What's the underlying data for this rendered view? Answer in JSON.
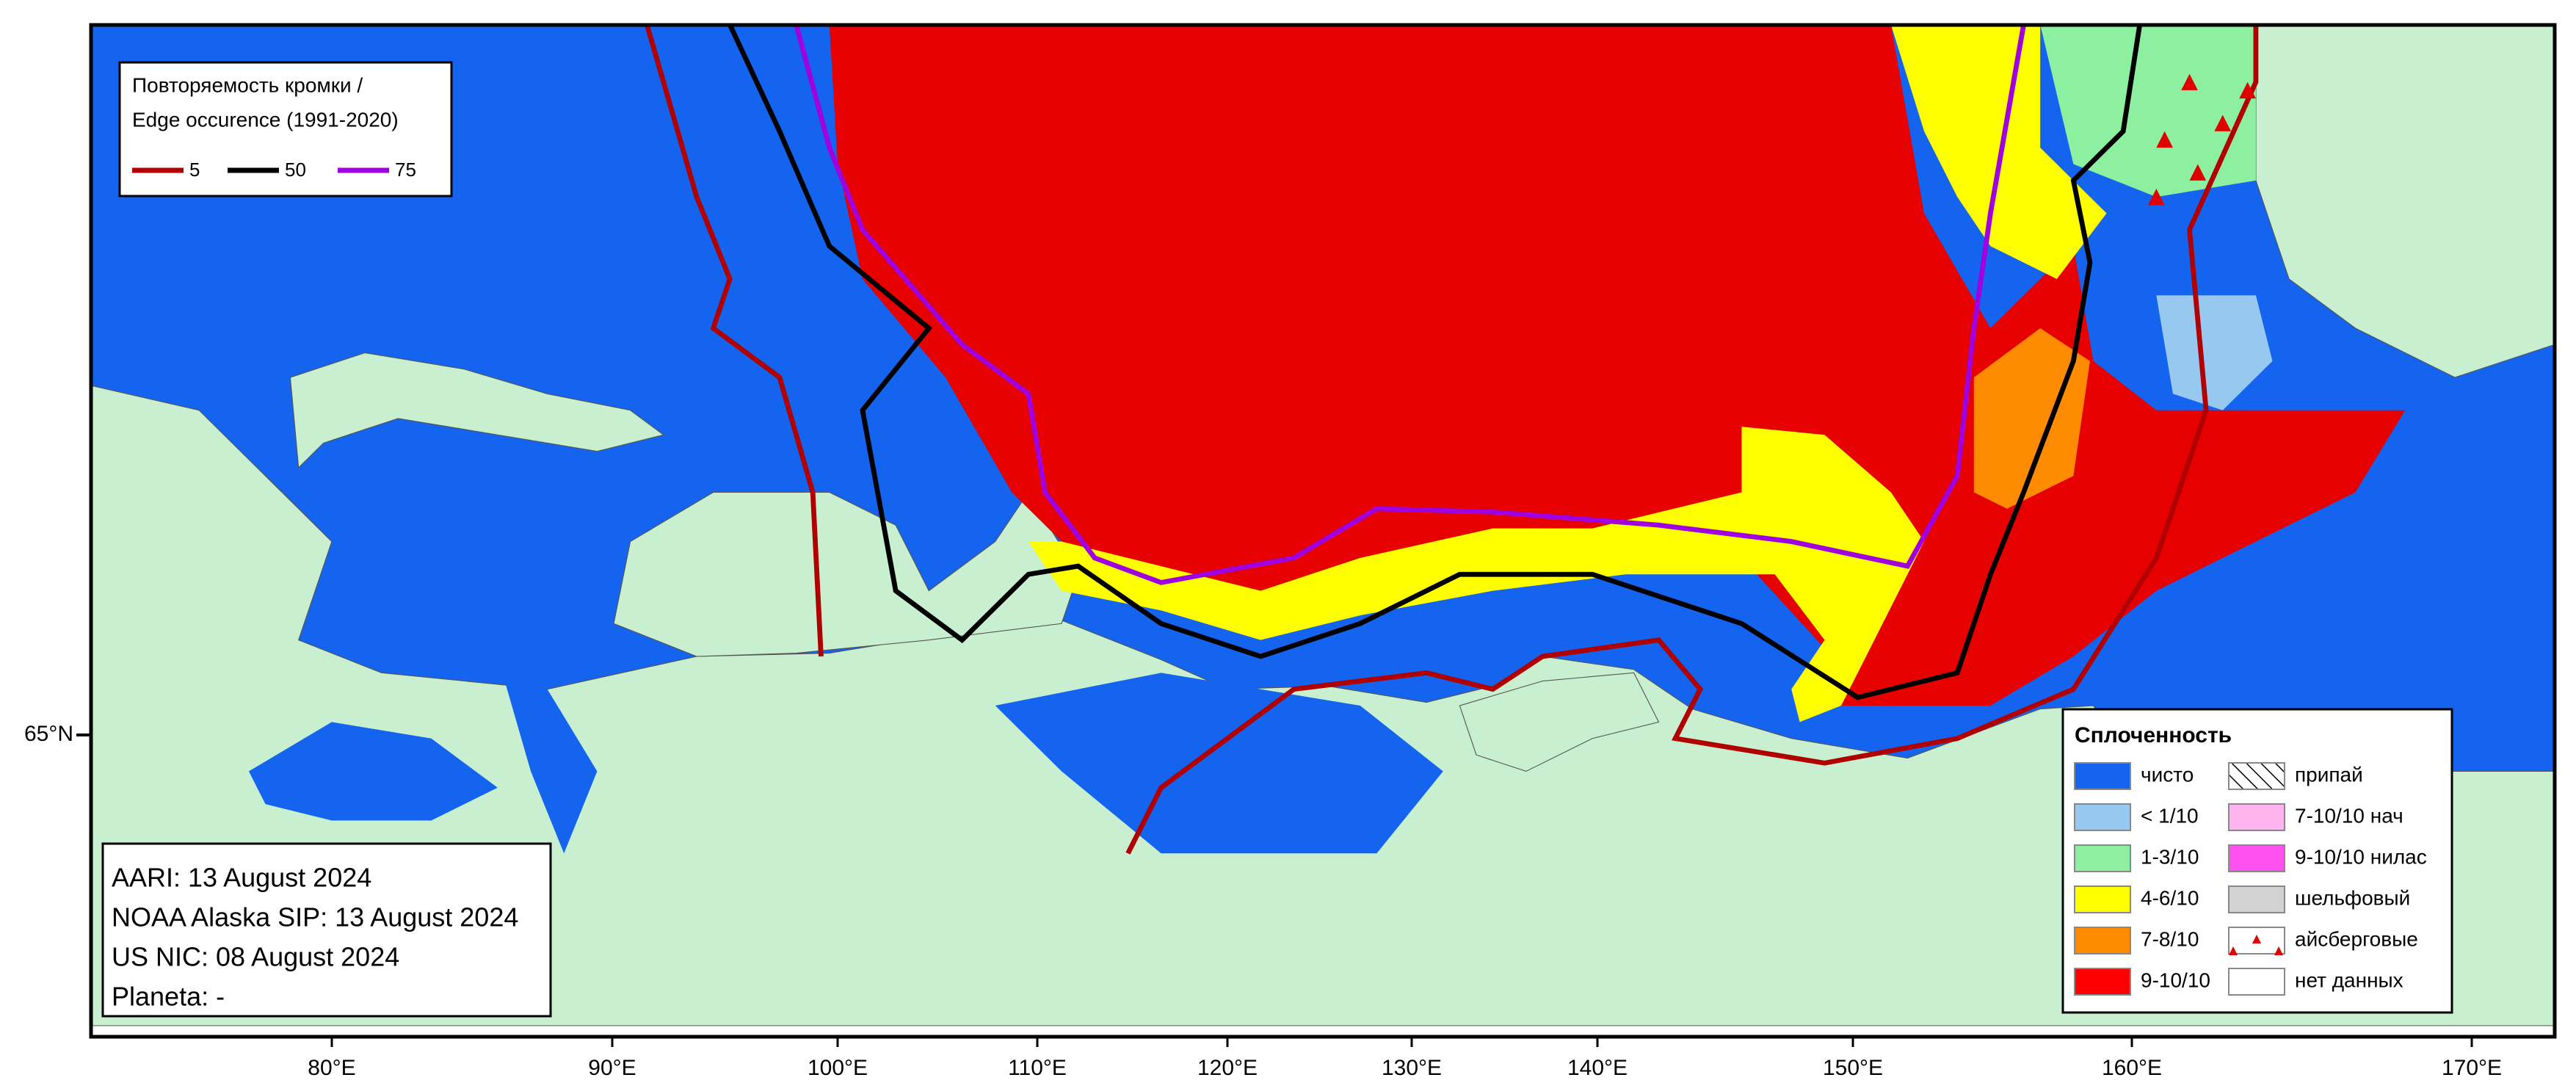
{
  "legend_edge": {
    "title": "Повторяемость кромки /",
    "subtitle": "Edge occurence (1991-2020)",
    "items": [
      {
        "label": "5",
        "color": "#b00000"
      },
      {
        "label": "50",
        "color": "#000000"
      },
      {
        "label": "75",
        "color": "#a000e0"
      }
    ]
  },
  "legend_concentration": {
    "title": "Сплоченность",
    "items": [
      {
        "label": "чисто",
        "color": "#1464f0"
      },
      {
        "label": "< 1/10",
        "color": "#96c8f0"
      },
      {
        "label": "1-3/10",
        "color": "#8cf0a0"
      },
      {
        "label": "4-6/10",
        "color": "#ffff00"
      },
      {
        "label": "7-8/10",
        "color": "#ff8c00"
      },
      {
        "label": "9-10/10",
        "color": "#ff0000"
      },
      {
        "label": "припай",
        "color": "hatch"
      },
      {
        "label": "7-10/10 нач",
        "color": "#ffb4f0"
      },
      {
        "label": "9-10/10 нилас",
        "color": "#ff50f0"
      },
      {
        "label": "шельфовый",
        "color": "#d2d2d2"
      },
      {
        "label": "айсберговые",
        "color": "iceberg"
      },
      {
        "label": "нет данных",
        "color": "#ffffff"
      }
    ]
  },
  "sources": [
    "AARI: 13 August 2024",
    "NOAA Alaska SIP: 13 August 2024",
    "US NIC: 08 August 2024",
    "Planeta: -"
  ],
  "longitude_labels": [
    "80°E",
    "90°E",
    "100°E",
    "110°E",
    "120°E",
    "130°E",
    "140°E",
    "150°E",
    "160°E",
    "170°E"
  ],
  "latitude_labels": [
    "65°N"
  ]
}
